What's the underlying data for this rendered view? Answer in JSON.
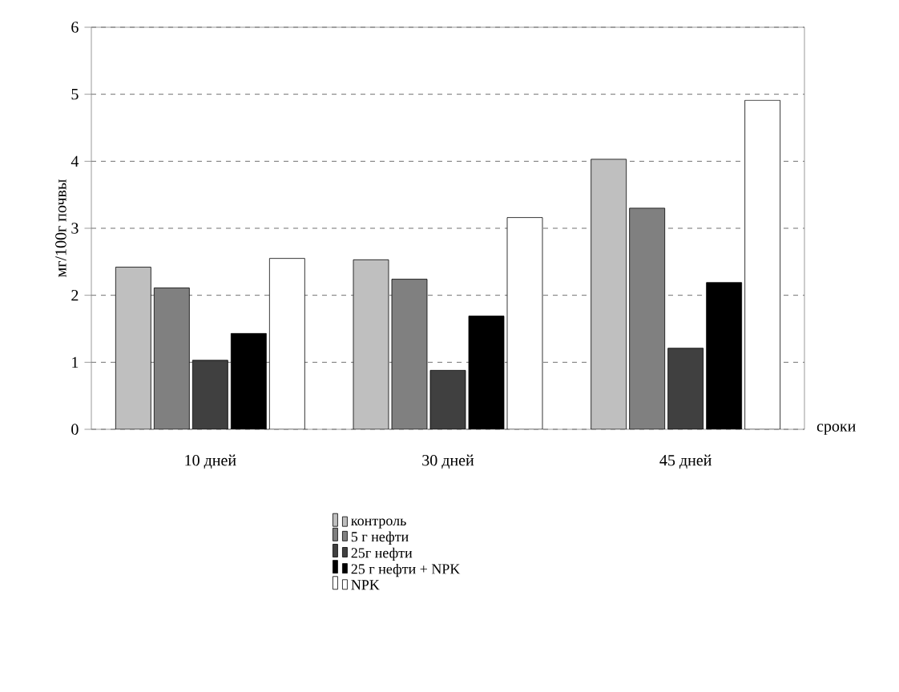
{
  "chart_data": {
    "type": "bar",
    "ylabel": "мг/100г почвы",
    "xlabel": "сроки",
    "categories": [
      "10 дней",
      "30 дней",
      "45 дней"
    ],
    "series": [
      {
        "name": "контроль",
        "color": "#bfbfbf",
        "values": [
          2.42,
          2.53,
          4.03
        ]
      },
      {
        "name": "5 г нефти",
        "color": "#808080",
        "values": [
          2.11,
          2.24,
          3.3
        ]
      },
      {
        "name": "25г нефти",
        "color": "#404040",
        "values": [
          1.03,
          0.88,
          1.21
        ]
      },
      {
        "name": "25 г нефти + NPK",
        "color": "#000000",
        "values": [
          1.43,
          1.69,
          2.19
        ]
      },
      {
        "name": "NPK",
        "color": "#ffffff",
        "values": [
          2.55,
          3.16,
          4.91
        ]
      }
    ],
    "ylim": [
      0,
      6
    ],
    "yticks": [
      0,
      1,
      2,
      3,
      4,
      5,
      6
    ],
    "grid": "y",
    "legend": "bottom"
  }
}
